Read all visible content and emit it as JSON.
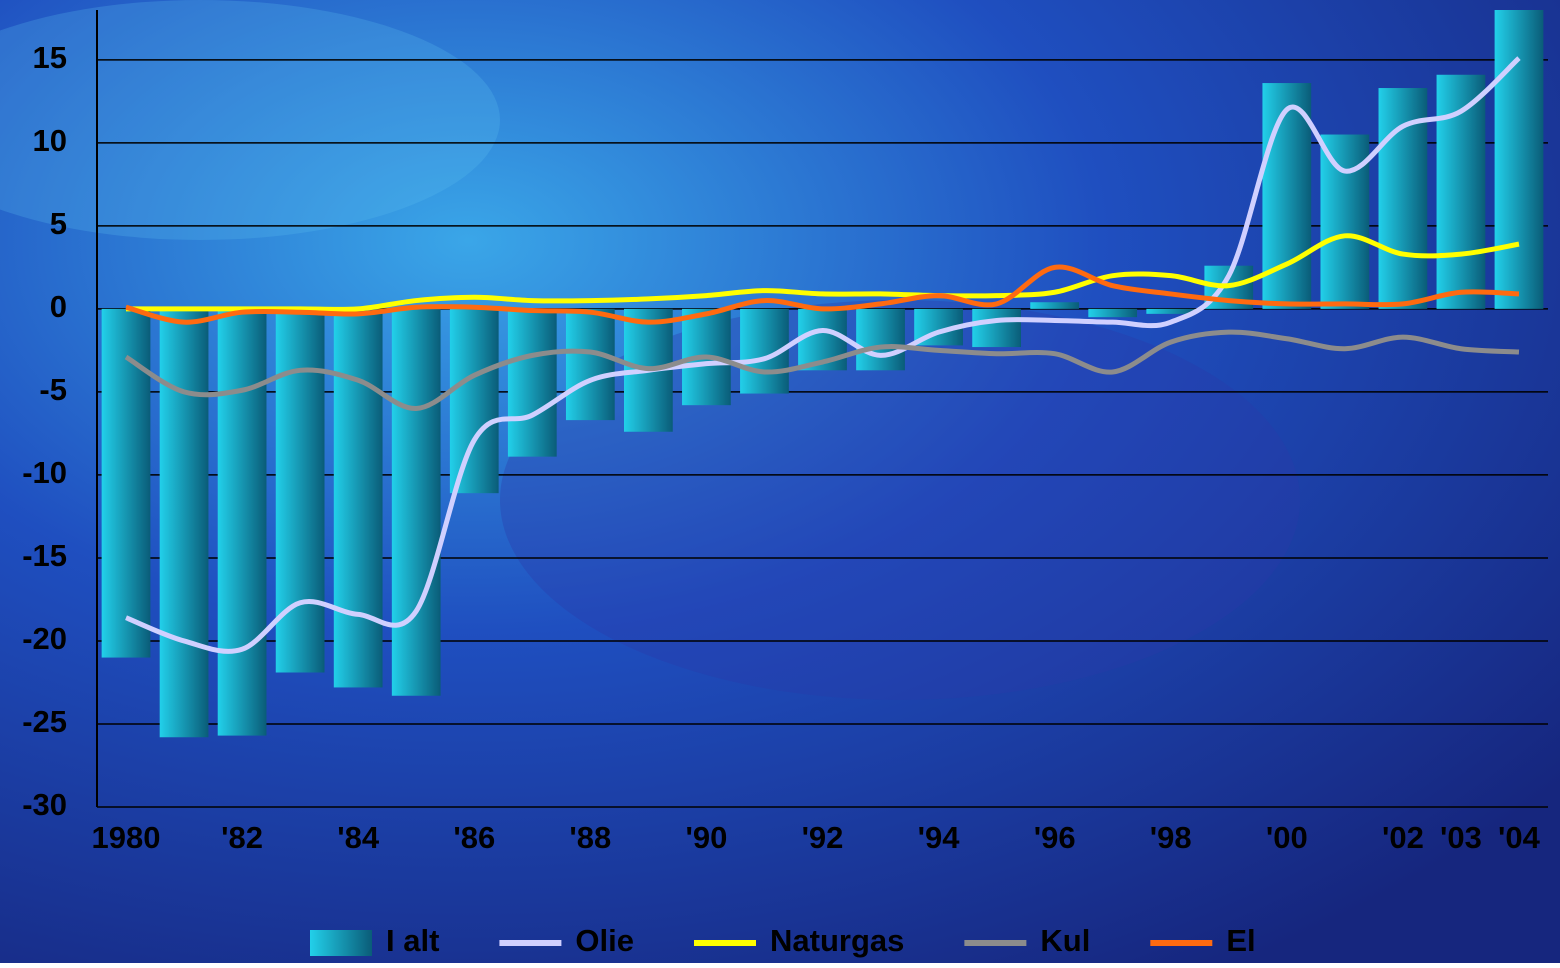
{
  "chart_data": {
    "type": "bar_line",
    "categories": [
      "1980",
      null,
      "'82",
      null,
      "'84",
      null,
      "'86",
      null,
      "'88",
      null,
      "'90",
      null,
      "'92",
      null,
      "'94",
      null,
      "'96",
      null,
      "'98",
      null,
      "'00",
      null,
      "'02",
      "'03",
      "'04"
    ],
    "series": [
      {
        "name": "I alt",
        "type": "bar",
        "color": "#22d0ea",
        "values": [
          -21.0,
          -25.8,
          -25.7,
          -21.9,
          -22.8,
          -23.3,
          -11.1,
          -8.9,
          -6.7,
          -7.4,
          -5.8,
          -5.1,
          -3.7,
          -3.7,
          -2.2,
          -2.3,
          0.4,
          -0.5,
          -0.3,
          2.6,
          13.6,
          10.5,
          13.3,
          14.1,
          18.0
        ]
      },
      {
        "name": "Olie",
        "type": "line",
        "color": "#d0d0ff",
        "values": [
          -18.6,
          -20.0,
          -20.5,
          -17.7,
          -18.4,
          -18.2,
          -7.9,
          -6.4,
          -4.3,
          -3.7,
          -3.3,
          -3.0,
          -1.3,
          -2.8,
          -1.4,
          -0.7,
          -0.7,
          -0.8,
          -0.8,
          2.0,
          12.0,
          8.3,
          11.0,
          11.9,
          15.1
        ]
      },
      {
        "name": "Naturgas",
        "type": "line",
        "color": "#ffff00",
        "values": [
          0,
          0,
          0,
          0,
          0,
          0.5,
          0.7,
          0.5,
          0.5,
          0.6,
          0.8,
          1.1,
          0.9,
          0.9,
          0.8,
          0.8,
          1.0,
          2.0,
          2.0,
          1.4,
          2.7,
          4.4,
          3.3,
          3.3,
          3.9
        ]
      },
      {
        "name": "Kul",
        "type": "line",
        "color": "#8c8c8c",
        "values": [
          -2.9,
          -5.0,
          -4.9,
          -3.7,
          -4.3,
          -6.0,
          -4.0,
          -2.8,
          -2.6,
          -3.6,
          -2.9,
          -3.8,
          -3.2,
          -2.3,
          -2.5,
          -2.7,
          -2.7,
          -3.8,
          -2.0,
          -1.4,
          -1.8,
          -2.4,
          -1.7,
          -2.4,
          -2.6
        ]
      },
      {
        "name": "El",
        "type": "line",
        "color": "#ff6a10",
        "values": [
          0.1,
          -0.8,
          -0.2,
          -0.2,
          -0.3,
          0.1,
          0.1,
          -0.1,
          -0.2,
          -0.8,
          -0.3,
          0.5,
          0.0,
          0.3,
          0.8,
          0.3,
          2.5,
          1.4,
          0.9,
          0.5,
          0.3,
          0.3,
          0.3,
          1.0,
          0.9
        ]
      }
    ],
    "ylim": [
      -30,
      18
    ],
    "yticks": [
      -30,
      -25,
      -20,
      -15,
      -10,
      -5,
      0,
      5,
      10,
      15
    ],
    "grid": true,
    "legend": "bottom"
  }
}
